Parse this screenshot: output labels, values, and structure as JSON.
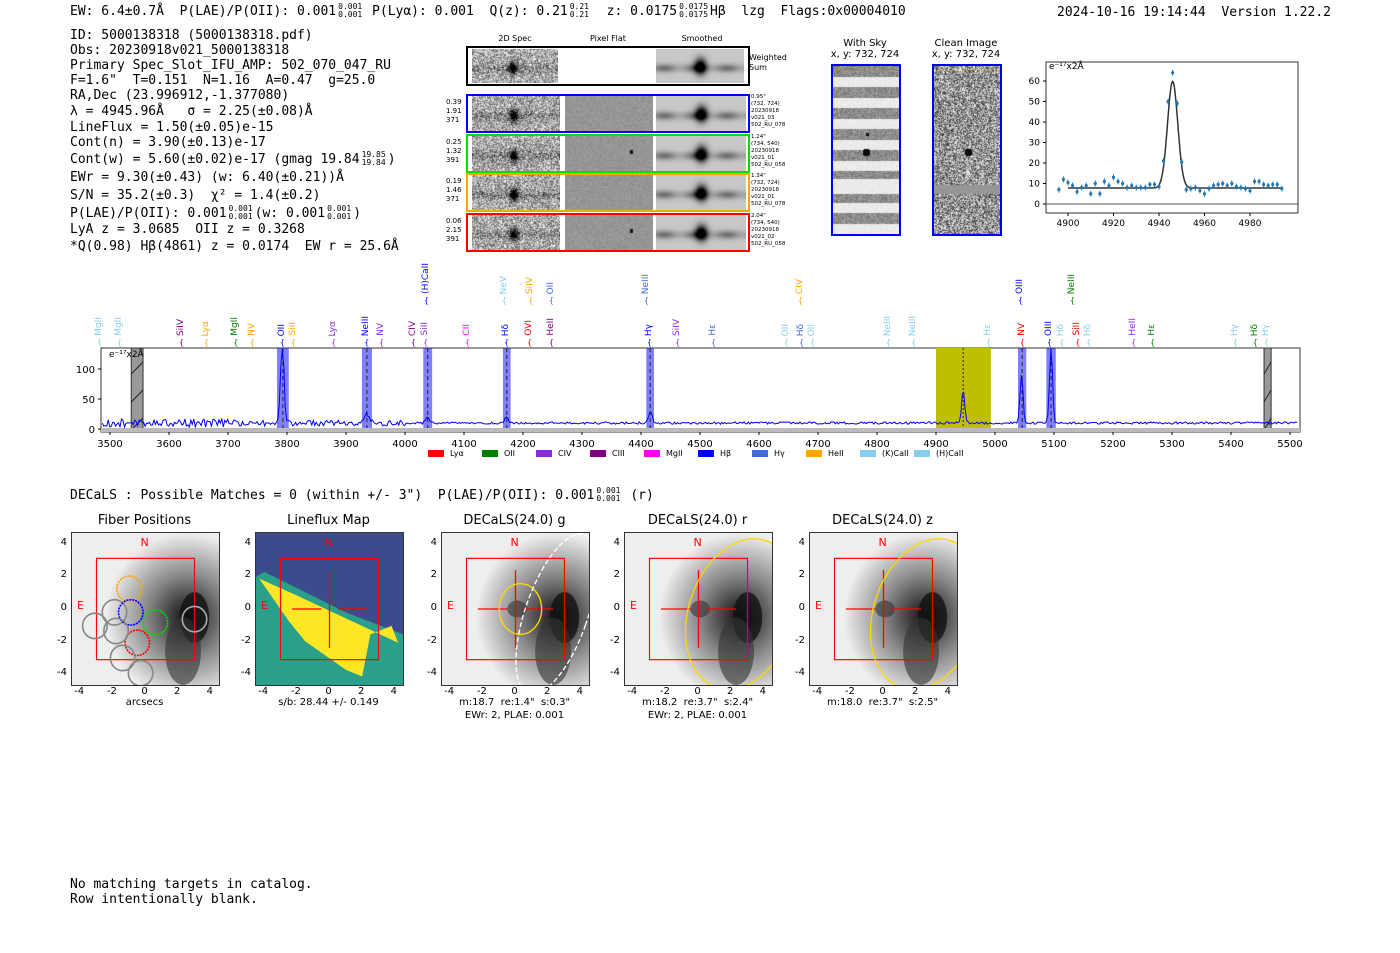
{
  "header": {
    "ew": "EW: 6.4±0.7Å",
    "plae_label": "P(LAE)/P(OII): 0.001",
    "plae_hi": "0.001",
    "plae_lo": "0.001",
    "plya": "P(Lyα): 0.001",
    "qz_label": "Q(z): 0.21",
    "qz_hi": "0.21",
    "qz_lo": "0.21",
    "z_label": "z: 0.0175",
    "z_hi": "0.0175",
    "z_lo": "0.0175",
    "line": "Hβ",
    "tag": "lzg",
    "flags": "Flags:0x00004010",
    "timestamp": "2024-10-16 19:14:44",
    "version": "Version 1.22.2"
  },
  "info": {
    "id": "ID: 5000138318 (5000138318.pdf)",
    "obs": "Obs: 20230918v021_5000138318",
    "primary": "Primary Spec_Slot_IFU_AMP: 502_070_047_RU",
    "params": "F=1.6\"  T=0.151  N=1.16  A=0.47  g=25.0",
    "radec": "RA,Dec (23.996912,-1.377080)",
    "lambda": "λ = 4945.96Å   σ = 2.25(±0.08)Å",
    "lineflux": "LineFlux = 1.50(±0.05)e-15",
    "contn": "Cont(n) = 3.90(±0.13)e-17",
    "contw": "Cont(w) = 5.60(±0.02)e-17 (gmag 19.84",
    "contw_hi": "19.85",
    "contw_lo": "19.84",
    "contw_end": ")",
    "ewr": "EWr = 9.30(±0.43) (w: 6.40(±0.21))Å",
    "sn": "S/N = 35.2(±0.3)  χ² = 1.4(±0.2)",
    "plae": "P(LAE)/P(OII): 0.001",
    "plae_hi": "0.001",
    "plae_lo": "0.001",
    "plae_w": "(w: 0.001",
    "plae_w_hi": "0.001",
    "plae_w_lo": "0.001",
    "plae_w_end": ")",
    "lyaz": "LyA z = 3.0685  OII z = 0.3268",
    "q": "*Q(0.98) Hβ(4861) z = 0.0174  EW r = 25.6Å"
  },
  "spec2d": {
    "col_headers": [
      "2D Spec",
      "Pixel Flat",
      "Smoothed"
    ],
    "weighted_sum_label": "Weighted\nSum",
    "rows": [
      {
        "color": "#0000ff",
        "left": [
          "0.39",
          "1.91",
          "371"
        ],
        "right": [
          "0.95\"",
          "(732, 724)",
          "20230918",
          "v021_03",
          "502_RU_078"
        ]
      },
      {
        "color": "#00dd00",
        "left": [
          "0.25",
          "1.32",
          "391"
        ],
        "right": [
          "1.24\"",
          "(734, 540)",
          "20230918",
          "v021_01",
          "502_RU_058"
        ]
      },
      {
        "color": "#ffa500",
        "left": [
          "0.19",
          "1.46",
          "371"
        ],
        "right": [
          "1.34\"",
          "(732, 724)",
          "20230918",
          "v021_01",
          "502_RU_078"
        ]
      },
      {
        "color": "#ff0000",
        "left": [
          "0.06",
          "2.15",
          "391"
        ],
        "right": [
          "2.04\"",
          "(734, 540)",
          "20230918",
          "v021_02",
          "502_RU_058"
        ]
      }
    ]
  },
  "cutouts": {
    "with_sky": {
      "title": "With Sky",
      "coords": "x, y: 732, 724"
    },
    "clean": {
      "title": "Clean Image",
      "coords": "x, y: 732, 724"
    }
  },
  "chart_data": [
    {
      "type": "scatter",
      "title": "",
      "units_label": "e⁻¹⁷x2Å",
      "xlim": [
        4891,
        5002
      ],
      "ylim": [
        -3,
        67
      ],
      "xticks": [
        4900,
        4920,
        4940,
        4960,
        4980
      ],
      "yticks": [
        0,
        10,
        20,
        30,
        40,
        50,
        60
      ],
      "points_x": [
        4896,
        4898,
        4900,
        4902,
        4904,
        4906,
        4908,
        4910,
        4912,
        4914,
        4916,
        4918,
        4920,
        4922,
        4924,
        4926,
        4928,
        4930,
        4932,
        4934,
        4936,
        4938,
        4940,
        4942,
        4944,
        4946,
        4948,
        4950,
        4952,
        4954,
        4956,
        4958,
        4960,
        4962,
        4964,
        4966,
        4968,
        4970,
        4972,
        4974,
        4976,
        4978,
        4980,
        4982,
        4984,
        4986,
        4988,
        4990,
        4992,
        4994
      ],
      "points_y": [
        7,
        12,
        10.5,
        9,
        6,
        8,
        9,
        5,
        10,
        5,
        11,
        9,
        13,
        11,
        10,
        8,
        9,
        8,
        8,
        8,
        9.5,
        9.5,
        8.5,
        21,
        50,
        64,
        49,
        20.5,
        7,
        7.5,
        8,
        6.5,
        5,
        7.5,
        9,
        9.5,
        10,
        9,
        10,
        8.5,
        8,
        7.5,
        6.5,
        11,
        11,
        9.5,
        9,
        9.5,
        9.5,
        7.5
      ],
      "model": {
        "center": 4946,
        "amplitude": 52,
        "sigma": 2.25,
        "continuum": 7.8,
        "range": [
          4900,
          4994
        ]
      },
      "color": "#1f77b4"
    },
    {
      "type": "line",
      "units_label": "e⁻¹⁷x2Å",
      "xlim": [
        3485,
        5515
      ],
      "ylim": [
        -3,
        133
      ],
      "xticks": [
        3500,
        3600,
        3700,
        3800,
        3900,
        4000,
        4100,
        4200,
        4300,
        4400,
        4500,
        4600,
        4700,
        4800,
        4900,
        5000,
        5100,
        5200,
        5300,
        5400,
        5500
      ],
      "yticks": [
        0,
        50,
        100
      ],
      "continuum": 10,
      "peaks": [
        {
          "x": 3792,
          "height": 130,
          "width": 3
        },
        {
          "x": 3935,
          "height": 16,
          "width": 4
        },
        {
          "x": 4038,
          "height": 9,
          "width": 3
        },
        {
          "x": 4172,
          "height": 10,
          "width": 3
        },
        {
          "x": 4416,
          "height": 20,
          "width": 3
        },
        {
          "x": 4946,
          "height": 55,
          "width": 2.5
        },
        {
          "x": 5045,
          "height": 82,
          "width": 2.5
        },
        {
          "x": 5095,
          "height": 130,
          "width": 2.5
        }
      ],
      "blue_bands": [
        [
          3783,
          3803
        ],
        [
          3927,
          3944
        ],
        [
          4031,
          4046
        ],
        [
          4166,
          4179
        ],
        [
          4409,
          4422
        ],
        [
          5039,
          5053
        ],
        [
          5087,
          5103
        ]
      ],
      "gray_bands": [
        [
          3536,
          3556
        ],
        [
          5456,
          5468
        ]
      ],
      "yellow_band": [
        4900,
        4993
      ],
      "center_line": 4946,
      "legend": [
        {
          "label": "Lyα",
          "color": "#ff0000"
        },
        {
          "label": "OII",
          "color": "#008000"
        },
        {
          "label": "CIV",
          "color": "#8a2be2"
        },
        {
          "label": "CIII",
          "color": "#800080"
        },
        {
          "label": "MgII",
          "color": "#ff00ff"
        },
        {
          "label": "Hβ",
          "color": "#0000ff"
        },
        {
          "label": "Hγ",
          "color": "#4169e1"
        },
        {
          "label": "HeII",
          "color": "#ffa500"
        },
        {
          "label": "(K)CaII",
          "color": "#87ceeb"
        },
        {
          "label": "(H)CaII",
          "color": "#87ceeb"
        }
      ],
      "line_labels_lower": [
        {
          "x": 3483,
          "t": "MgII",
          "c": "#87ceeb"
        },
        {
          "x": 3517,
          "t": "MgII",
          "c": "#87ceeb"
        },
        {
          "x": 3622,
          "t": "SiIV",
          "c": "#800080"
        },
        {
          "x": 3664,
          "t": "Lyα",
          "c": "#ffa500"
        },
        {
          "x": 3714,
          "t": "MgII",
          "c": "#008000"
        },
        {
          "x": 3742,
          "t": "NV",
          "c": "#ffa500"
        },
        {
          "x": 3793,
          "t": "OII",
          "c": "#0000ff"
        },
        {
          "x": 3810,
          "t": "SiII",
          "c": "#ffa500"
        },
        {
          "x": 3880,
          "t": "Lyα",
          "c": "#8a2be2"
        },
        {
          "x": 3936,
          "t": "NeIII",
          "c": "#0000ff"
        },
        {
          "x": 3961,
          "t": "NV",
          "c": "#8a2be2"
        },
        {
          "x": 4015,
          "t": "CIV",
          "c": "#800080"
        },
        {
          "x": 4036,
          "t": "SiII",
          "c": "#8a2be2"
        },
        {
          "x": 4107,
          "t": "CII",
          "c": "#ff00ff"
        },
        {
          "x": 4173,
          "t": "Hδ",
          "c": "#0000ff"
        },
        {
          "x": 4212,
          "t": "OVI",
          "c": "#ff0000"
        },
        {
          "x": 4249,
          "t": "HeII",
          "c": "#800080"
        },
        {
          "x": 4415,
          "t": "Hγ",
          "c": "#0000ff"
        },
        {
          "x": 4463,
          "t": "SiIV",
          "c": "#8a2be2"
        },
        {
          "x": 4524,
          "t": "Hε",
          "c": "#4169e1"
        },
        {
          "x": 4647,
          "t": "OII",
          "c": "#87ceeb"
        },
        {
          "x": 4673,
          "t": "Hδ",
          "c": "#4169e1"
        },
        {
          "x": 4686,
          "t": "OII",
          "c": "#87ceeb"
        },
        {
          "x": 4820,
          "t": "NeIII",
          "c": "#87ceeb"
        },
        {
          "x": 4863,
          "t": "NeIII",
          "c": "#87ceeb"
        },
        {
          "x": 4990,
          "t": "Hε",
          "c": "#87ceeb"
        },
        {
          "x": 5047,
          "t": "NV",
          "c": "#ff0000"
        },
        {
          "x": 5093,
          "t": "OIII",
          "c": "#0000ff"
        },
        {
          "x": 5114,
          "t": "Hδ",
          "c": "#87ceeb"
        },
        {
          "x": 5141,
          "t": "SiII",
          "c": "#ff0000"
        },
        {
          "x": 5158,
          "t": "Hδ",
          "c": "#87ceeb"
        },
        {
          "x": 5236,
          "t": "HeII",
          "c": "#8a2be2"
        },
        {
          "x": 5268,
          "t": "Hε",
          "c": "#008000"
        },
        {
          "x": 5408,
          "t": "Hγ",
          "c": "#87ceeb"
        },
        {
          "x": 5442,
          "t": "Hδ",
          "c": "#008000"
        },
        {
          "x": 5459,
          "t": "Hγ",
          "c": "#87ceeb"
        }
      ],
      "line_labels_upper": [
        {
          "x": 4037,
          "t": "(H)CaII",
          "c": "#0000ff"
        },
        {
          "x": 4169,
          "t": "NeV",
          "c": "#87ceeb"
        },
        {
          "x": 4214,
          "t": "SiIV",
          "c": "#ffa500"
        },
        {
          "x": 4249,
          "t": "OII",
          "c": "#4169e1"
        },
        {
          "x": 4410,
          "t": "NeIII",
          "c": "#4169e1"
        },
        {
          "x": 4671,
          "t": "CIV",
          "c": "#ffa500"
        },
        {
          "x": 5044,
          "t": "OIII",
          "c": "#0000ff"
        },
        {
          "x": 5132,
          "t": "NeIII",
          "c": "#008000"
        }
      ]
    }
  ],
  "decals": {
    "summary": "DECaLS : Possible Matches = 0 (within +/- 3\")  P(LAE)/P(OII): 0.001",
    "summary_hi": "0.001",
    "summary_lo": "0.001",
    "summary_end": "(r)",
    "ticks": [
      "-4",
      "-2",
      "0",
      "2",
      "4"
    ],
    "north": "N",
    "east": "E",
    "panels": [
      {
        "title": "Fiber Positions",
        "caption1": "arcsecs",
        "caption2": ""
      },
      {
        "title": "Lineflux Map",
        "caption1": "s/b: 28.44 +/- 0.149",
        "caption2": ""
      },
      {
        "title": "DECaLS(24.0) g",
        "caption1": "m:18.7  re:1.4\"  s:0.3\"",
        "caption2": "EWr: 2, PLAE: 0.001"
      },
      {
        "title": "DECaLS(24.0) r",
        "caption1": "m:18.2  re:3.7\"  s:2.4\"",
        "caption2": "EWr: 2, PLAE: 0.001"
      },
      {
        "title": "DECaLS(24.0) z",
        "caption1": "m:18.0  re:3.7\"  s:2.5\"",
        "caption2": ""
      }
    ]
  },
  "catalog": {
    "line1": "No matching targets in catalog.",
    "line2": "Row intentionally blank."
  }
}
